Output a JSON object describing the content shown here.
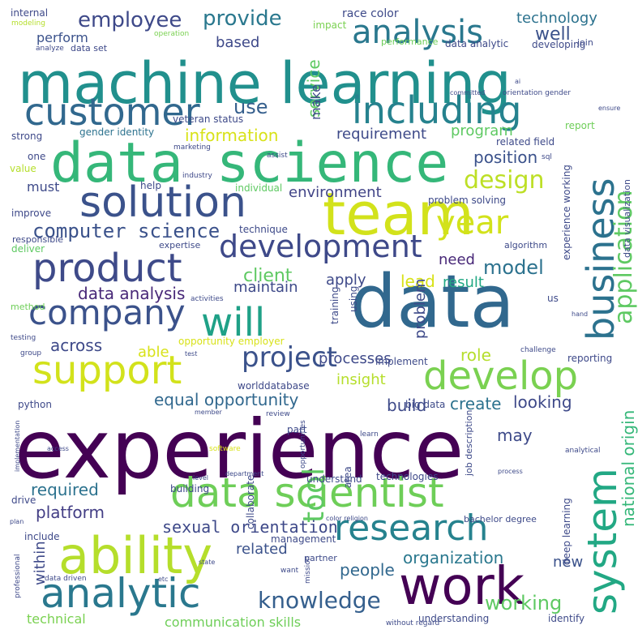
{
  "words": [
    {
      "text": "experience",
      "color": "#440154"
    },
    {
      "text": "data",
      "color": "#31688e"
    },
    {
      "text": "machine learning",
      "color": "#21908d"
    },
    {
      "text": "team",
      "color": "#d2e21b"
    },
    {
      "text": "data science",
      "color": "#35b779"
    },
    {
      "text": "work",
      "color": "#440154"
    },
    {
      "text": "data scientist",
      "color": "#6ece58"
    },
    {
      "text": "ability",
      "color": "#b5de2b"
    },
    {
      "text": "solution",
      "color": "#3b528b"
    },
    {
      "text": "customer",
      "color": "#31688e"
    },
    {
      "text": "including",
      "color": "#26828e"
    },
    {
      "text": "product",
      "color": "#3e4a89"
    },
    {
      "text": "business",
      "color": "#2c728e"
    },
    {
      "text": "support",
      "color": "#d2e21b"
    },
    {
      "text": "analytic",
      "color": "#2a788e"
    },
    {
      "text": "system",
      "color": "#22a884"
    },
    {
      "text": "company",
      "color": "#3b528b"
    },
    {
      "text": "will",
      "color": "#1fa187"
    },
    {
      "text": "develop",
      "color": "#7ad151"
    },
    {
      "text": "research",
      "color": "#26828e"
    },
    {
      "text": "year",
      "color": "#d2e21b"
    },
    {
      "text": "development",
      "color": "#3e4989"
    },
    {
      "text": "analysis",
      "color": "#2a788e"
    },
    {
      "text": "project",
      "color": "#3b528b"
    },
    {
      "text": "tool",
      "color": "#5ec962"
    },
    {
      "text": "knowledge",
      "color": "#355f8d"
    },
    {
      "text": "design",
      "color": "#bddf26"
    },
    {
      "text": "application",
      "color": "#5ec962"
    },
    {
      "text": "employee",
      "color": "#3e4989"
    },
    {
      "text": "provide",
      "color": "#2a788e"
    },
    {
      "text": "technology",
      "color": "#2c728e"
    },
    {
      "text": "computer science",
      "color": "#3b528b"
    },
    {
      "text": "model",
      "color": "#2c728e"
    },
    {
      "text": "equal opportunity",
      "color": "#31688e"
    },
    {
      "text": "working",
      "color": "#5ec962"
    },
    {
      "text": "national origin",
      "color": "#35b779"
    },
    {
      "text": "sexual orientation",
      "color": "#3e4989"
    },
    {
      "text": "data analysis",
      "color": "#482878"
    },
    {
      "text": "platform",
      "color": "#433e85"
    },
    {
      "text": "information",
      "color": "#d8e219"
    },
    {
      "text": "use",
      "color": "#355f8d"
    },
    {
      "text": "position",
      "color": "#3b528b"
    },
    {
      "text": "environment",
      "color": "#414487"
    },
    {
      "text": "required",
      "color": "#2c728e"
    },
    {
      "text": "organization",
      "color": "#2a788e"
    },
    {
      "text": "people",
      "color": "#31688e"
    },
    {
      "text": "communication skills",
      "color": "#6ece58"
    },
    {
      "text": "technical",
      "color": "#7ad151"
    },
    {
      "text": "build",
      "color": "#3e4a89"
    },
    {
      "text": "create",
      "color": "#2c728e"
    },
    {
      "text": "looking",
      "color": "#3e4989"
    },
    {
      "text": "client",
      "color": "#5ec962"
    },
    {
      "text": "lead",
      "color": "#d8e219"
    },
    {
      "text": "result",
      "color": "#22a884"
    },
    {
      "text": "role",
      "color": "#b5de2b"
    },
    {
      "text": "across",
      "color": "#3e4989"
    },
    {
      "text": "able",
      "color": "#d8e219"
    },
    {
      "text": "maintain",
      "color": "#3e4a89"
    },
    {
      "text": "apply",
      "color": "#3e4989"
    },
    {
      "text": "need",
      "color": "#482878"
    },
    {
      "text": "requirement",
      "color": "#3e4a89"
    },
    {
      "text": "program",
      "color": "#5ec962"
    },
    {
      "text": "insight",
      "color": "#b5de2b"
    },
    {
      "text": "processes",
      "color": "#3e4989"
    },
    {
      "text": "service",
      "color": "#5ec962"
    },
    {
      "text": "make",
      "color": "#3e4a89"
    },
    {
      "text": "based",
      "color": "#3e4989"
    },
    {
      "text": "perform",
      "color": "#3b528b"
    },
    {
      "text": "well",
      "color": "#3b528b"
    },
    {
      "text": "related",
      "color": "#3b528b"
    },
    {
      "text": "within",
      "color": "#3e4989"
    },
    {
      "text": "new",
      "color": "#3b528b"
    },
    {
      "text": "must",
      "color": "#3e4a89"
    },
    {
      "text": "problem",
      "color": "#3e4a89"
    },
    {
      "text": "internal",
      "color": "#3e4989"
    },
    {
      "text": "race color",
      "color": "#3e4a89"
    },
    {
      "text": "impact",
      "color": "#7ad151"
    },
    {
      "text": "data set",
      "color": "#3e4989"
    },
    {
      "text": "data analytic",
      "color": "#3e4a89"
    },
    {
      "text": "developing",
      "color": "#3e4a89"
    },
    {
      "text": "performance",
      "color": "#6ece58"
    },
    {
      "text": "join",
      "color": "#3e4a89"
    },
    {
      "text": "analyze",
      "color": "#3e4989"
    },
    {
      "text": "operation",
      "color": "#7ad151"
    },
    {
      "text": "modeling",
      "color": "#b5de2b"
    },
    {
      "text": "veteran status",
      "color": "#3e4a89"
    },
    {
      "text": "gender identity",
      "color": "#2c728e"
    },
    {
      "text": "strong",
      "color": "#3e4989"
    },
    {
      "text": "orientation gender",
      "color": "#3e4a89"
    },
    {
      "text": "committed",
      "color": "#3e4a89"
    },
    {
      "text": "ai",
      "color": "#3e4a89"
    },
    {
      "text": "ensure",
      "color": "#3e4a89"
    },
    {
      "text": "report",
      "color": "#6ece58"
    },
    {
      "text": "related field",
      "color": "#3e4a89"
    },
    {
      "text": "sql",
      "color": "#3e4989"
    },
    {
      "text": "experience working",
      "color": "#3e4a89"
    },
    {
      "text": "data visualization",
      "color": "#3e4a89"
    },
    {
      "text": "marketing",
      "color": "#3e4989"
    },
    {
      "text": "assist",
      "color": "#3e4a89"
    },
    {
      "text": "industry",
      "color": "#3e4989"
    },
    {
      "text": "one",
      "color": "#3e4989"
    },
    {
      "text": "value",
      "color": "#b5de2b"
    },
    {
      "text": "help",
      "color": "#3e4989"
    },
    {
      "text": "individual",
      "color": "#5ec962"
    },
    {
      "text": "improve",
      "color": "#3e4989"
    },
    {
      "text": "problem solving",
      "color": "#3e4a89"
    },
    {
      "text": "technique",
      "color": "#3e4a89"
    },
    {
      "text": "deliver",
      "color": "#5ec962"
    },
    {
      "text": "responsible",
      "color": "#3e4989"
    },
    {
      "text": "expertise",
      "color": "#3e4a89"
    },
    {
      "text": "algorithm",
      "color": "#3e4a89"
    },
    {
      "text": "method",
      "color": "#6ece58"
    },
    {
      "text": "activities",
      "color": "#3e4a89"
    },
    {
      "text": "testing",
      "color": "#3e4989"
    },
    {
      "text": "group",
      "color": "#3e4989"
    },
    {
      "text": "opportunity employer",
      "color": "#d8e219"
    },
    {
      "text": "training",
      "color": "#3e4a89"
    },
    {
      "text": "using",
      "color": "#3e4a89"
    },
    {
      "text": "us",
      "color": "#3e4a89"
    },
    {
      "text": "hand",
      "color": "#3e4a89"
    },
    {
      "text": "challenge",
      "color": "#3e4a89"
    },
    {
      "text": "test",
      "color": "#3e4a89"
    },
    {
      "text": "implement",
      "color": "#3e4a89"
    },
    {
      "text": "reporting",
      "color": "#3e4989"
    },
    {
      "text": "worlddatabase",
      "color": "#3e4989"
    },
    {
      "text": "python",
      "color": "#3e4989"
    },
    {
      "text": "big data",
      "color": "#3e4a89"
    },
    {
      "text": "building",
      "color": "#3e4989"
    },
    {
      "text": "member",
      "color": "#3e4a89"
    },
    {
      "text": "review",
      "color": "#3e4a89"
    },
    {
      "text": "learn",
      "color": "#3e4a89"
    },
    {
      "text": "may",
      "color": "#3e4a89"
    },
    {
      "text": "access",
      "color": "#3e4989"
    },
    {
      "text": "analytical",
      "color": "#3e4a89"
    },
    {
      "text": "implementation",
      "color": "#3e4989"
    },
    {
      "text": "collaborate",
      "color": "#3e4a89"
    },
    {
      "text": "part",
      "color": "#3e4a89"
    },
    {
      "text": "opportunities",
      "color": "#3e4a89"
    },
    {
      "text": "area",
      "color": "#3e4a89"
    },
    {
      "text": "job description",
      "color": "#3e4a89"
    },
    {
      "text": "software",
      "color": "#d8e219"
    },
    {
      "text": "level",
      "color": "#3e4a89"
    },
    {
      "text": "department",
      "color": "#3e4a89"
    },
    {
      "text": "understand",
      "color": "#3e4a89"
    },
    {
      "text": "technologies",
      "color": "#3e4989"
    },
    {
      "text": "process",
      "color": "#3e4a89"
    },
    {
      "text": "deep learning",
      "color": "#3e4a89"
    },
    {
      "text": "drive",
      "color": "#3e4989"
    },
    {
      "text": "color religion",
      "color": "#3e4a89"
    },
    {
      "text": "bachelor degree",
      "color": "#3e4a89"
    },
    {
      "text": "plan",
      "color": "#3e4989"
    },
    {
      "text": "include",
      "color": "#3e4989"
    },
    {
      "text": "management",
      "color": "#3e4a89"
    },
    {
      "text": "partner",
      "color": "#3e4a89"
    },
    {
      "text": "professional",
      "color": "#3e4989"
    },
    {
      "text": "state",
      "color": "#3e4a89"
    },
    {
      "text": "mission",
      "color": "#3e4a89"
    },
    {
      "text": "want",
      "color": "#3e4a89"
    },
    {
      "text": "data driven",
      "color": "#3e4989"
    },
    {
      "text": "etc",
      "color": "#3e4a89"
    },
    {
      "text": "understanding",
      "color": "#3e4a89"
    },
    {
      "text": "without regard",
      "color": "#3e4a89"
    },
    {
      "text": "identify",
      "color": "#3e4a89"
    }
  ]
}
